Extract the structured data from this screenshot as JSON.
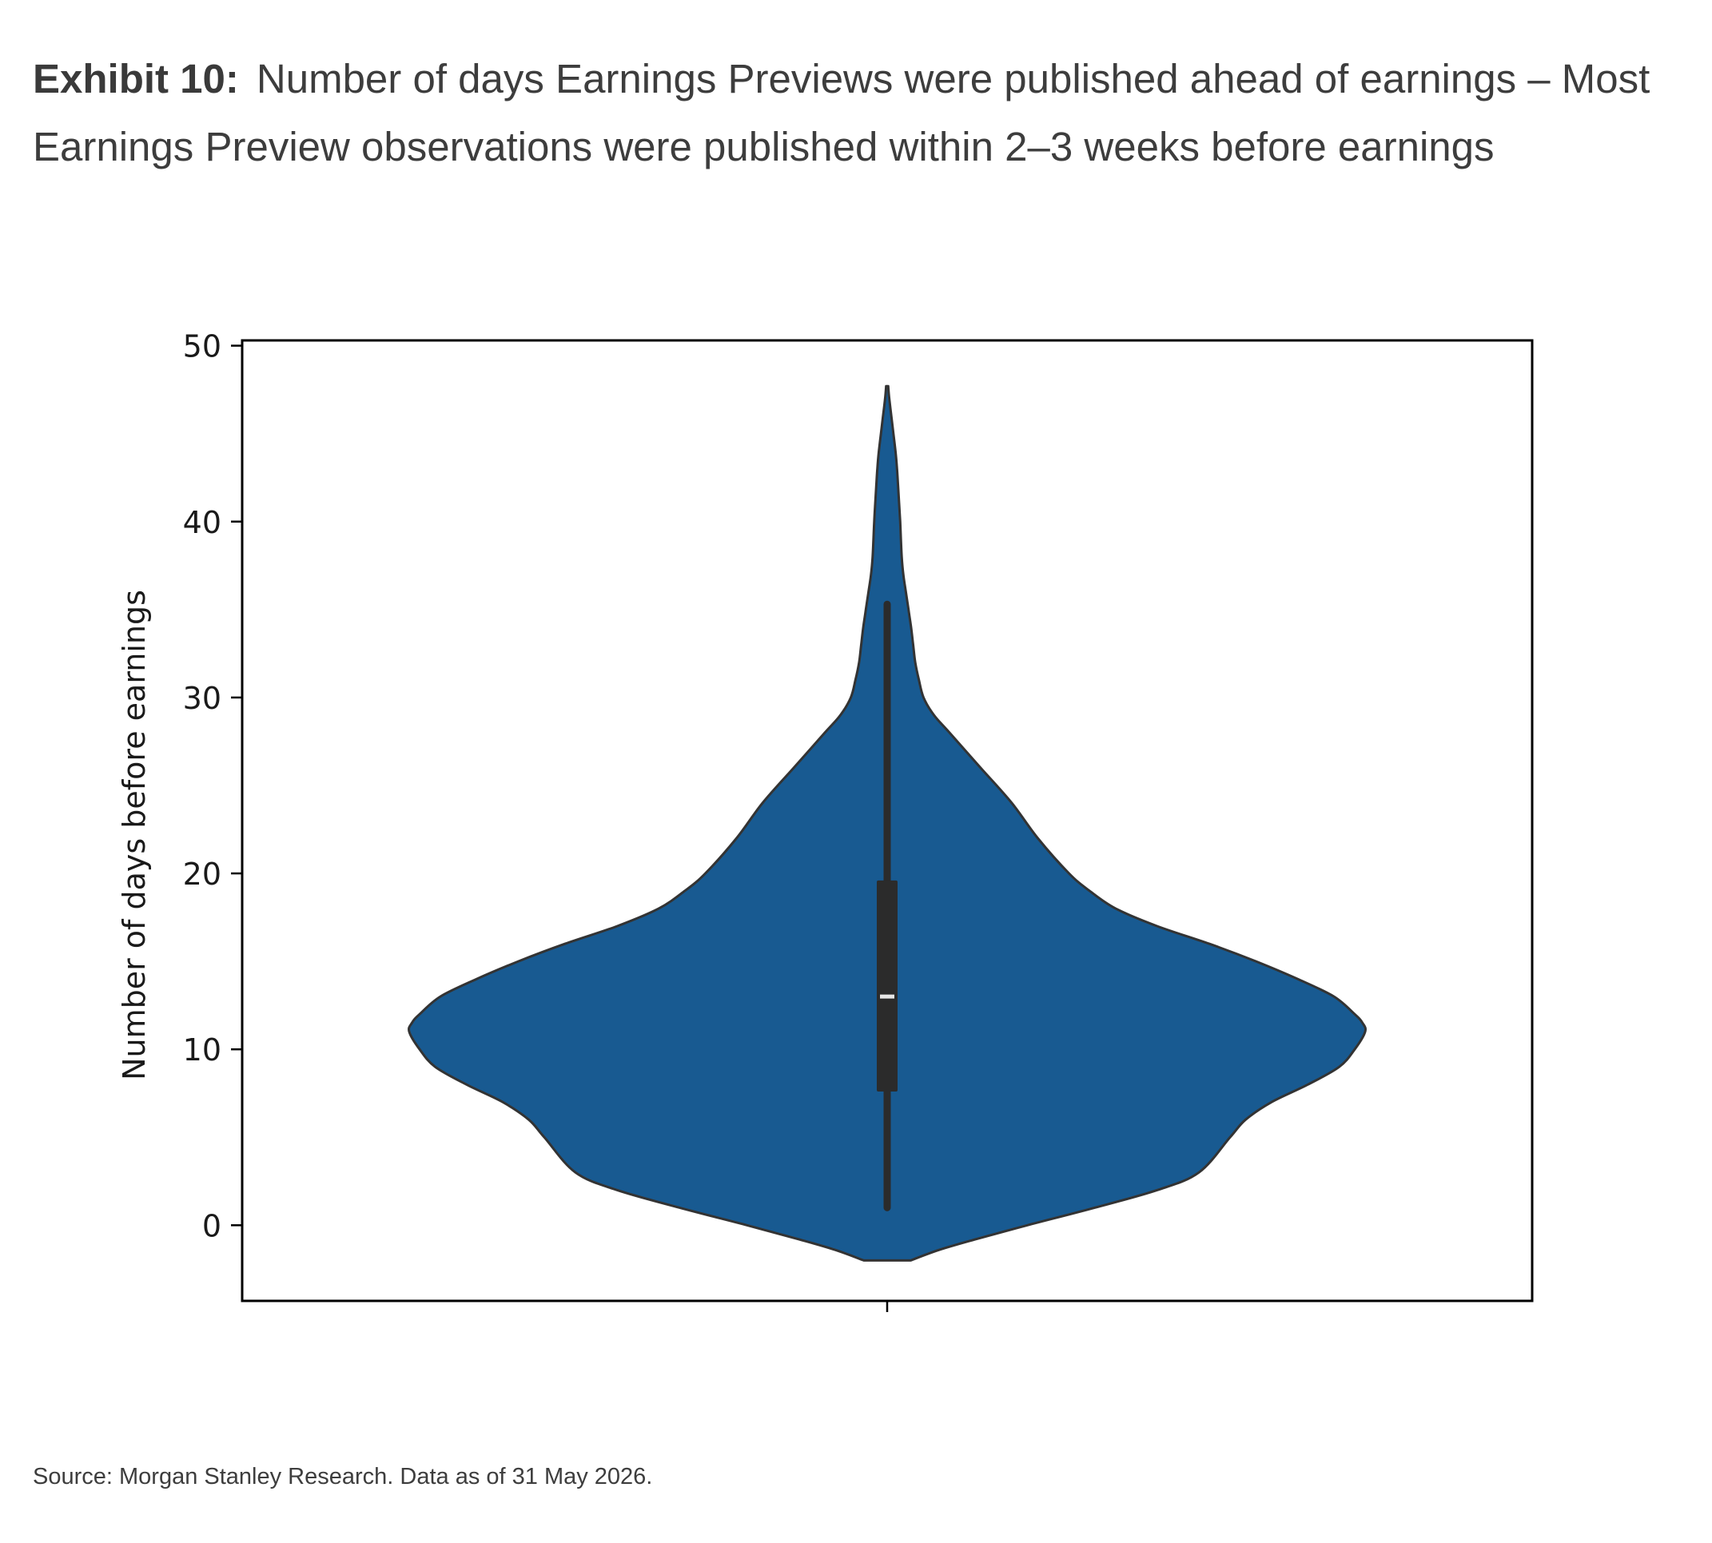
{
  "header": {
    "exhibit_label": "Exhibit 10:",
    "title": "Number of days Earnings Previews were published ahead of earnings – Most Earnings Preview observations were published within 2–3 weeks before earnings"
  },
  "footer": {
    "source": "Source: Morgan Stanley Research. Data as of 31 May 2026."
  },
  "colors": {
    "violin_fill": "#185a91",
    "violin_edge": "#333333",
    "box": "#2b2b2b",
    "median": "#e6e6e6"
  },
  "chart_data": {
    "type": "violin",
    "title": "",
    "xlabel": "",
    "ylabel": "Number of days before earnings",
    "ylim": [
      -4.3,
      50.3
    ],
    "yticks": [
      0,
      10,
      20,
      30,
      40,
      50
    ],
    "ytick_labels": [
      "0",
      "10",
      "20",
      "30",
      "40",
      "50"
    ],
    "grid": false,
    "legend": "none",
    "summary": {
      "whisker_low": 1,
      "q1": 7.6,
      "median": 13,
      "q3": 19.6,
      "whisker_high": 35.3,
      "min_extent": -2,
      "max_extent": 47.7
    },
    "density_profile": {
      "y": [
        -2,
        -1.4,
        -0.8,
        0,
        1,
        2,
        3,
        5,
        6,
        7,
        8,
        9,
        10,
        11,
        11.5,
        12,
        13,
        14,
        15,
        16,
        17,
        18,
        19,
        20,
        22,
        24,
        26,
        28,
        29,
        30,
        31,
        32,
        33,
        34,
        35,
        36,
        37,
        38,
        40,
        41,
        42,
        43,
        44,
        45,
        46,
        47,
        47.7
      ],
      "half_width": [
        0.045,
        0.1,
        0.17,
        0.27,
        0.4,
        0.52,
        0.6,
        0.66,
        0.69,
        0.74,
        0.81,
        0.87,
        0.9,
        0.92,
        0.915,
        0.9,
        0.86,
        0.79,
        0.71,
        0.62,
        0.52,
        0.44,
        0.39,
        0.35,
        0.29,
        0.24,
        0.18,
        0.12,
        0.09,
        0.07,
        0.061,
        0.054,
        0.05,
        0.046,
        0.041,
        0.036,
        0.031,
        0.028,
        0.025,
        0.023,
        0.021,
        0.019,
        0.016,
        0.012,
        0.008,
        0.004,
        0.002
      ]
    }
  }
}
